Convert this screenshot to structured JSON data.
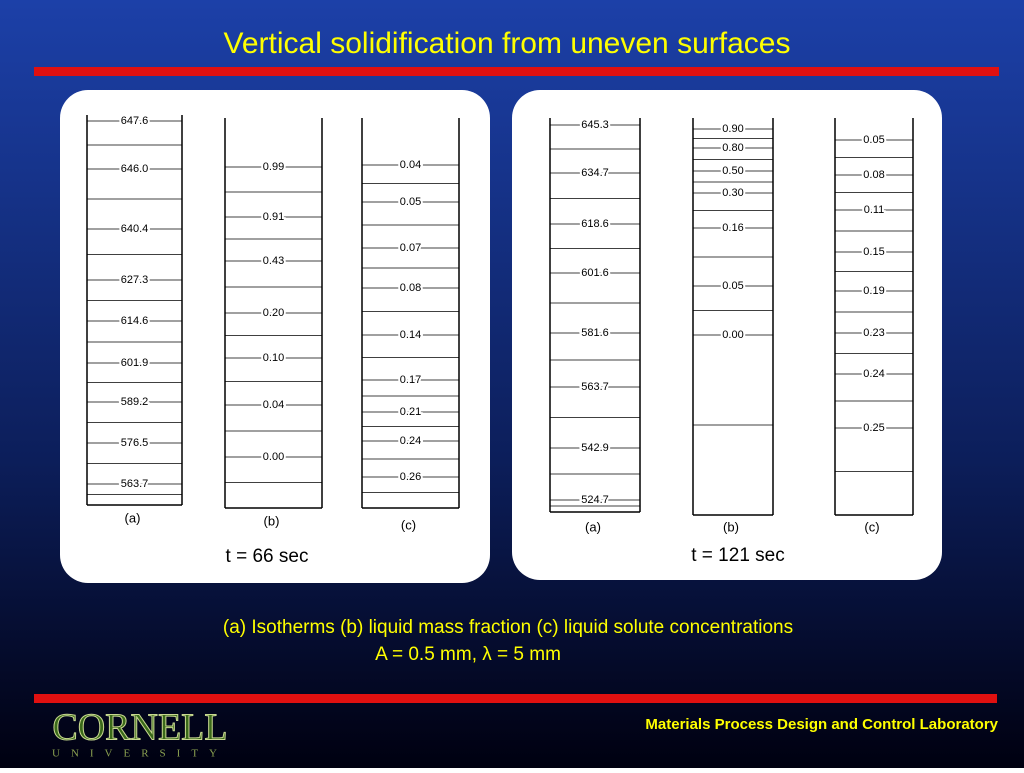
{
  "title": "Vertical solidification from uneven surfaces",
  "panels": [
    {
      "time": "t = 66 sec",
      "columns": [
        {
          "label": "(a)",
          "contours": [
            "647.6",
            "646.0",
            "640.4",
            "627.3",
            "614.6",
            "601.9",
            "589.2",
            "576.5",
            "563.7"
          ]
        },
        {
          "label": "(b)",
          "contours": [
            "0.99",
            "0.91",
            "0.43",
            "0.20",
            "0.10",
            "0.04",
            "0.00"
          ]
        },
        {
          "label": "(c)",
          "contours": [
            "0.04",
            "0.05",
            "0.07",
            "0.08",
            "0.14",
            "0.17",
            "0.21",
            "0.24",
            "0.26"
          ]
        }
      ]
    },
    {
      "time": "t = 121 sec",
      "columns": [
        {
          "label": "(a)",
          "contours": [
            "645.3",
            "634.7",
            "618.6",
            "601.6",
            "581.6",
            "563.7",
            "542.9",
            "524.7"
          ]
        },
        {
          "label": "(b)",
          "contours": [
            "0.90",
            "0.80",
            "0.50",
            "0.30",
            "0.16",
            "0.05",
            "0.00"
          ]
        },
        {
          "label": "(c)",
          "contours": [
            "0.05",
            "0.08",
            "0.11",
            "0.15",
            "0.19",
            "0.23",
            "0.24",
            "0.25"
          ]
        }
      ]
    }
  ],
  "caption": [
    "(a)  Isotherms (b) liquid mass fraction (c) liquid solute concentrations",
    "A = 0.5 mm, λ = 5 mm"
  ],
  "footer": {
    "logo": "CORNELL",
    "logo_sub": "UNIVERSITY",
    "lab": "Materials Process Design and Control Laboratory"
  }
}
